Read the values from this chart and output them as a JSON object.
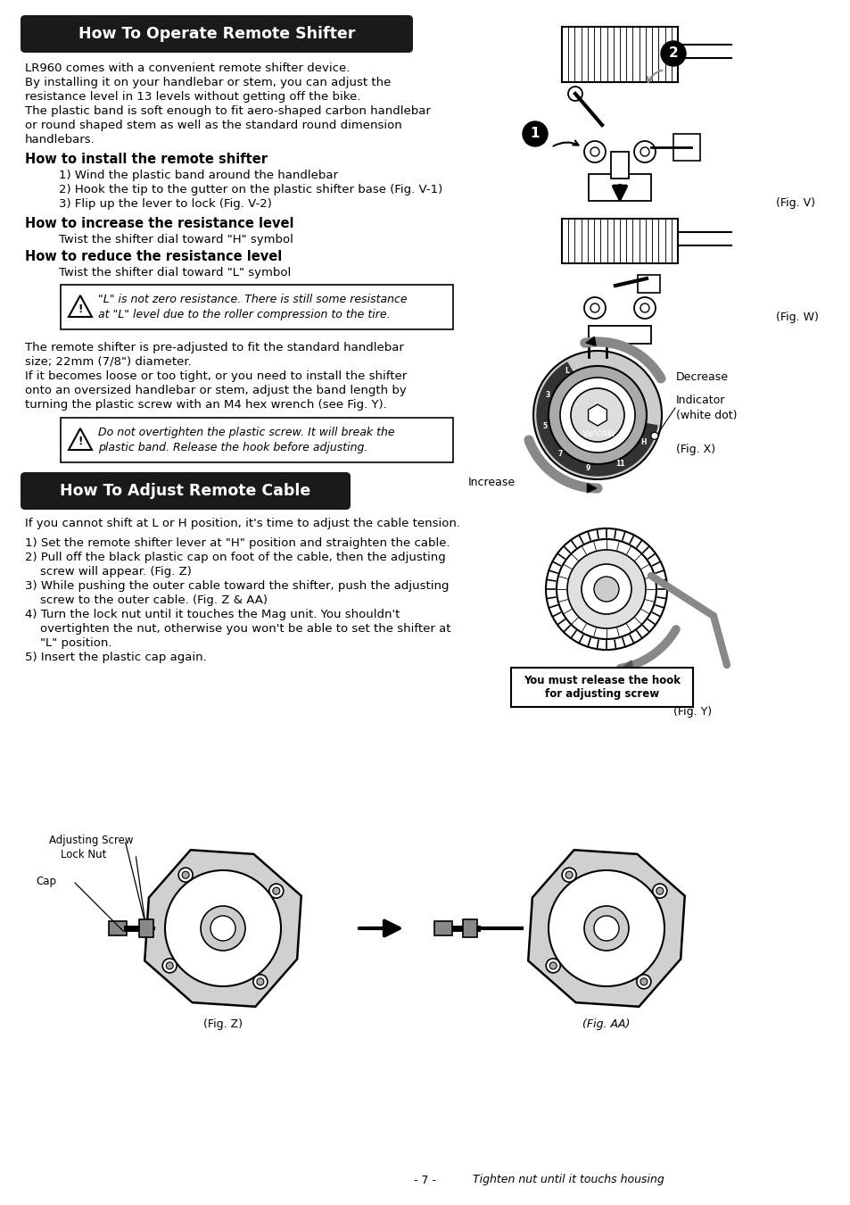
{
  "page_bg": "#ffffff",
  "title1": "How To Operate Remote Shifter",
  "title2": "How To Adjust Remote Cable",
  "section1_body": [
    "LR960 comes with a convenient remote shifter device.",
    "By installing it on your handlebar or stem, you can adjust the",
    "resistance level in 13 levels without getting off the bike.",
    "The plastic band is soft enough to fit aero-shaped carbon handlebar",
    "or round shaped stem as well as the standard round dimension",
    "handlebars."
  ],
  "install_title": "How to install the remote shifter",
  "install_steps": [
    "1) Wind the plastic band around the handlebar",
    "2) Hook the tip to the gutter on the plastic shifter base (Fig. V-1)",
    "3) Flip up the lever to lock (Fig. V-2)"
  ],
  "increase_title": "How to increase the resistance level",
  "increase_body": "Twist the shifter dial toward \"H\" symbol",
  "reduce_title": "How to reduce the resistance level",
  "reduce_body": "Twist the shifter dial toward \"L\" symbol",
  "warning1": "\"L\" is not zero resistance. There is still some resistance\nat \"L\" level due to the roller compression to the tire.",
  "section1_body2": [
    "The remote shifter is pre-adjusted to fit the standard handlebar",
    "size; 22mm (7/8\") diameter.",
    "If it becomes loose or too tight, or you need to install the shifter",
    "onto an oversized handlebar or stem, adjust the band length by",
    "turning the plastic screw with an M4 hex wrench (see Fig. Y)."
  ],
  "warning2": "Do not overtighten the plastic screw. It will break the\nplastic band. Release the hook before adjusting.",
  "section2_intro": "If you cannot shift at L or H position, it's time to adjust the cable tension.",
  "section2_steps": [
    "1) Set the remote shifter lever at \"H\" position and straighten the cable.",
    "2) Pull off the black plastic cap on foot of the cable, then the adjusting",
    "    screw will appear. (Fig. Z)",
    "3) While pushing the outer cable toward the shifter, push the adjusting",
    "    screw to the outer cable. (Fig. Z & AA)",
    "4) Turn the lock nut until it touches the Mag unit. You shouldn't",
    "    overtighten the nut, otherwise you won't be able to set the shifter at",
    "    \"L\" position.",
    "5) Insert the plastic cap again."
  ],
  "bottom_italic": "Tighten nut until it touchs housing",
  "page_num": "- 7 -",
  "fig_y_bold_label": "You must release the hook\nfor adjusting screw",
  "adj_screw_label": "Adjusting Screw",
  "lock_nut_label": "Lock Nut",
  "cap_label": "Cap",
  "decrease_label": "Decrease",
  "increase_label": "Increase",
  "indicator_label": "Indicator\n(white dot)",
  "fig_v_label": "(Fig. V)",
  "fig_w_label": "(Fig. W)",
  "fig_x_label": "(Fig. X)",
  "fig_y_label": "(Fig. Y)",
  "fig_z_label": "(Fig. Z)",
  "fig_aa_label": "(Fig. AA)"
}
